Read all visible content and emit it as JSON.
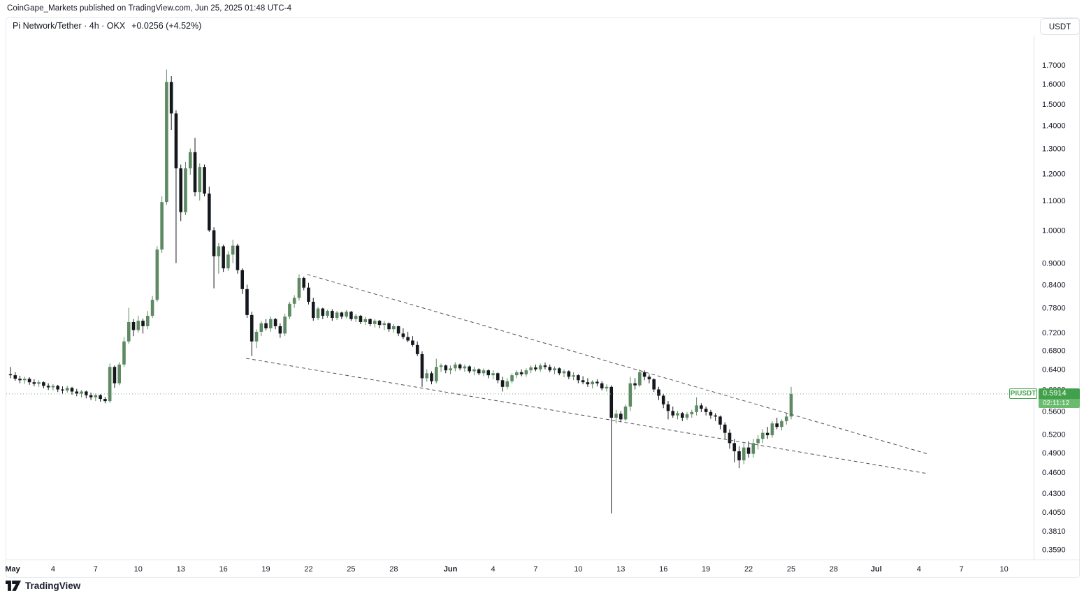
{
  "attribution": "CoinGape_Markets published on TradingView.com, Jun 25, 2025 01:48 UTC-4",
  "header": {
    "title_text": "Pi Network/Tether · 4h · OKX",
    "change_text": "+0.0256 (+4.52%)"
  },
  "toolbar": {
    "currency_label": "USDT"
  },
  "price_label": {
    "ticker": "PIUSDT",
    "price": "0.5914",
    "countdown": "02:11:12"
  },
  "footer": {
    "brand": "TradingView"
  },
  "colors": {
    "up_candle": "#5d8a62",
    "down_candle": "#14171c",
    "trendline": "#4f4f4f",
    "current_price_line": "#76ac7c",
    "label_green": "#41a04b",
    "countdown_green": "#6abb6e",
    "axis_text": "#131722",
    "separator": "#e0e3eb"
  },
  "chart_data": {
    "type": "candlestick",
    "symbol": "PIUSDT",
    "exchange": "OKX",
    "interval": "4h",
    "scale": "logarithmic",
    "grid": false,
    "current_price": 0.5914,
    "session_countdown": "02:11:12",
    "y_axis": {
      "unit": "USDT",
      "range": [
        0.345,
        1.72
      ],
      "ticks": [
        {
          "label": "1.7000",
          "price": 1.7
        },
        {
          "label": "1.6000",
          "price": 1.6
        },
        {
          "label": "1.5000",
          "price": 1.5
        },
        {
          "label": "1.4000",
          "price": 1.4
        },
        {
          "label": "1.3000",
          "price": 1.3
        },
        {
          "label": "1.2000",
          "price": 1.2
        },
        {
          "label": "1.1000",
          "price": 1.1
        },
        {
          "label": "1.0000",
          "price": 1.0
        },
        {
          "label": "0.9000",
          "price": 0.9
        },
        {
          "label": "0.8400",
          "price": 0.84
        },
        {
          "label": "0.7800",
          "price": 0.78
        },
        {
          "label": "0.7200",
          "price": 0.72
        },
        {
          "label": "0.6800",
          "price": 0.68
        },
        {
          "label": "0.6400",
          "price": 0.64
        },
        {
          "label": "0.6000",
          "price": 0.6
        },
        {
          "label": "0.5600",
          "price": 0.56
        },
        {
          "label": "0.5200",
          "price": 0.52
        },
        {
          "label": "0.4900",
          "price": 0.49
        },
        {
          "label": "0.4600",
          "price": 0.46
        },
        {
          "label": "0.4300",
          "price": 0.43
        },
        {
          "label": "0.4050",
          "price": 0.405
        },
        {
          "label": "0.3810",
          "price": 0.381
        },
        {
          "label": "0.3590",
          "price": 0.359
        }
      ]
    },
    "x_axis": {
      "start_date": "May 1",
      "range_days": [
        0,
        70.5
      ],
      "ticks": [
        {
          "label": "May",
          "day": 0.15,
          "bold": true
        },
        {
          "label": "4",
          "day": 3
        },
        {
          "label": "7",
          "day": 6
        },
        {
          "label": "10",
          "day": 9
        },
        {
          "label": "13",
          "day": 12
        },
        {
          "label": "16",
          "day": 15
        },
        {
          "label": "19",
          "day": 18
        },
        {
          "label": "22",
          "day": 21
        },
        {
          "label": "25",
          "day": 24
        },
        {
          "label": "28",
          "day": 27
        },
        {
          "label": "Jun",
          "day": 31,
          "bold": true
        },
        {
          "label": "4",
          "day": 34
        },
        {
          "label": "7",
          "day": 37
        },
        {
          "label": "10",
          "day": 40
        },
        {
          "label": "13",
          "day": 43
        },
        {
          "label": "16",
          "day": 46
        },
        {
          "label": "19",
          "day": 49
        },
        {
          "label": "22",
          "day": 52
        },
        {
          "label": "25",
          "day": 55
        },
        {
          "label": "28",
          "day": 58
        },
        {
          "label": "Jul",
          "day": 61,
          "bold": true
        },
        {
          "label": "4",
          "day": 64
        },
        {
          "label": "7",
          "day": 67
        },
        {
          "label": "10",
          "day": 70
        }
      ]
    },
    "trendlines": [
      {
        "name": "wedge-upper",
        "from_day": 20.9,
        "from_price": 0.868,
        "to_day": 64.6,
        "to_price": 0.488,
        "style": "dashed"
      },
      {
        "name": "wedge-lower",
        "from_day": 16.6,
        "from_price": 0.663,
        "to_day": 64.6,
        "to_price": 0.458,
        "style": "dashed"
      }
    ],
    "candle_step_days": 0.33333,
    "first_candle_day": 0,
    "candles": [
      [
        0.63,
        0.645,
        0.622,
        0.628
      ],
      [
        0.628,
        0.634,
        0.617,
        0.621
      ],
      [
        0.621,
        0.627,
        0.612,
        0.618
      ],
      [
        0.618,
        0.625,
        0.611,
        0.621
      ],
      [
        0.621,
        0.624,
        0.609,
        0.614
      ],
      [
        0.614,
        0.62,
        0.606,
        0.611
      ],
      [
        0.611,
        0.618,
        0.605,
        0.614
      ],
      [
        0.614,
        0.616,
        0.602,
        0.607
      ],
      [
        0.607,
        0.612,
        0.599,
        0.604
      ],
      [
        0.604,
        0.61,
        0.598,
        0.607
      ],
      [
        0.607,
        0.609,
        0.595,
        0.6
      ],
      [
        0.6,
        0.606,
        0.592,
        0.598
      ],
      [
        0.598,
        0.607,
        0.594,
        0.603
      ],
      [
        0.603,
        0.605,
        0.59,
        0.596
      ],
      [
        0.596,
        0.601,
        0.587,
        0.592
      ],
      [
        0.592,
        0.599,
        0.585,
        0.596
      ],
      [
        0.596,
        0.598,
        0.583,
        0.589
      ],
      [
        0.589,
        0.594,
        0.58,
        0.585
      ],
      [
        0.585,
        0.592,
        0.578,
        0.589
      ],
      [
        0.589,
        0.591,
        0.577,
        0.582
      ],
      [
        0.582,
        0.586,
        0.574,
        0.578
      ],
      [
        0.578,
        0.652,
        0.575,
        0.645
      ],
      [
        0.645,
        0.648,
        0.603,
        0.612
      ],
      [
        0.612,
        0.655,
        0.608,
        0.65
      ],
      [
        0.65,
        0.71,
        0.645,
        0.7
      ],
      [
        0.7,
        0.78,
        0.695,
        0.745
      ],
      [
        0.745,
        0.752,
        0.712,
        0.726
      ],
      [
        0.726,
        0.76,
        0.72,
        0.748
      ],
      [
        0.748,
        0.753,
        0.718,
        0.735
      ],
      [
        0.735,
        0.772,
        0.728,
        0.76
      ],
      [
        0.76,
        0.81,
        0.755,
        0.8
      ],
      [
        0.8,
        0.95,
        0.795,
        0.94
      ],
      [
        0.94,
        1.115,
        0.93,
        1.095
      ],
      [
        1.095,
        1.675,
        1.085,
        1.61
      ],
      [
        1.61,
        1.64,
        1.38,
        1.455
      ],
      [
        1.455,
        1.47,
        0.9,
        1.22
      ],
      [
        1.22,
        1.235,
        1.03,
        1.06
      ],
      [
        1.06,
        1.245,
        1.05,
        1.22
      ],
      [
        1.22,
        1.3,
        1.195,
        1.285
      ],
      [
        1.285,
        1.345,
        1.115,
        1.13
      ],
      [
        1.13,
        1.24,
        1.1,
        1.225
      ],
      [
        1.225,
        1.235,
        1.115,
        1.125
      ],
      [
        1.125,
        1.15,
        0.995,
        1.0
      ],
      [
        1.0,
        1.01,
        0.83,
        0.92
      ],
      [
        0.92,
        0.96,
        0.87,
        0.95
      ],
      [
        0.95,
        0.955,
        0.875,
        0.885
      ],
      [
        0.885,
        0.935,
        0.878,
        0.925
      ],
      [
        0.925,
        0.97,
        0.9,
        0.952
      ],
      [
        0.952,
        0.958,
        0.87,
        0.88
      ],
      [
        0.88,
        0.885,
        0.815,
        0.828
      ],
      [
        0.828,
        0.84,
        0.755,
        0.762
      ],
      [
        0.762,
        0.77,
        0.668,
        0.7
      ],
      [
        0.7,
        0.728,
        0.685,
        0.722
      ],
      [
        0.722,
        0.748,
        0.712,
        0.742
      ],
      [
        0.742,
        0.752,
        0.725,
        0.73
      ],
      [
        0.73,
        0.758,
        0.722,
        0.752
      ],
      [
        0.752,
        0.755,
        0.728,
        0.735
      ],
      [
        0.735,
        0.742,
        0.708,
        0.718
      ],
      [
        0.718,
        0.765,
        0.712,
        0.758
      ],
      [
        0.758,
        0.795,
        0.752,
        0.79
      ],
      [
        0.79,
        0.812,
        0.78,
        0.805
      ],
      [
        0.805,
        0.868,
        0.798,
        0.858
      ],
      [
        0.858,
        0.862,
        0.825,
        0.832
      ],
      [
        0.832,
        0.845,
        0.788,
        0.795
      ],
      [
        0.795,
        0.805,
        0.748,
        0.755
      ],
      [
        0.755,
        0.782,
        0.75,
        0.778
      ],
      [
        0.778,
        0.78,
        0.752,
        0.76
      ],
      [
        0.76,
        0.775,
        0.755,
        0.772
      ],
      [
        0.772,
        0.776,
        0.748,
        0.755
      ],
      [
        0.755,
        0.772,
        0.75,
        0.768
      ],
      [
        0.768,
        0.77,
        0.752,
        0.758
      ],
      [
        0.758,
        0.774,
        0.754,
        0.77
      ],
      [
        0.77,
        0.772,
        0.748,
        0.752
      ],
      [
        0.752,
        0.765,
        0.745,
        0.76
      ],
      [
        0.76,
        0.762,
        0.74,
        0.745
      ],
      [
        0.745,
        0.758,
        0.738,
        0.752
      ],
      [
        0.752,
        0.754,
        0.735,
        0.74
      ],
      [
        0.74,
        0.752,
        0.732,
        0.748
      ],
      [
        0.748,
        0.75,
        0.73,
        0.738
      ],
      [
        0.738,
        0.748,
        0.726,
        0.742
      ],
      [
        0.742,
        0.744,
        0.722,
        0.728
      ],
      [
        0.728,
        0.74,
        0.72,
        0.735
      ],
      [
        0.735,
        0.736,
        0.712,
        0.718
      ],
      [
        0.718,
        0.73,
        0.705,
        0.71
      ],
      [
        0.71,
        0.722,
        0.698,
        0.702
      ],
      [
        0.702,
        0.712,
        0.688,
        0.692
      ],
      [
        0.692,
        0.7,
        0.668,
        0.672
      ],
      [
        0.672,
        0.678,
        0.605,
        0.622
      ],
      [
        0.622,
        0.64,
        0.615,
        0.632
      ],
      [
        0.632,
        0.636,
        0.61,
        0.616
      ],
      [
        0.616,
        0.662,
        0.612,
        0.645
      ],
      [
        0.645,
        0.652,
        0.635,
        0.648
      ],
      [
        0.648,
        0.65,
        0.632,
        0.638
      ],
      [
        0.638,
        0.648,
        0.63,
        0.642
      ],
      [
        0.642,
        0.655,
        0.636,
        0.65
      ],
      [
        0.65,
        0.652,
        0.638,
        0.642
      ],
      [
        0.642,
        0.65,
        0.635,
        0.646
      ],
      [
        0.646,
        0.648,
        0.632,
        0.636
      ],
      [
        0.636,
        0.645,
        0.628,
        0.64
      ],
      [
        0.64,
        0.642,
        0.628,
        0.632
      ],
      [
        0.632,
        0.642,
        0.626,
        0.638
      ],
      [
        0.638,
        0.64,
        0.622,
        0.628
      ],
      [
        0.628,
        0.638,
        0.62,
        0.632
      ],
      [
        0.632,
        0.634,
        0.612,
        0.618
      ],
      [
        0.618,
        0.625,
        0.596,
        0.605
      ],
      [
        0.605,
        0.622,
        0.6,
        0.616
      ],
      [
        0.616,
        0.632,
        0.612,
        0.628
      ],
      [
        0.628,
        0.638,
        0.622,
        0.634
      ],
      [
        0.634,
        0.64,
        0.626,
        0.63
      ],
      [
        0.63,
        0.642,
        0.625,
        0.638
      ],
      [
        0.638,
        0.648,
        0.632,
        0.644
      ],
      [
        0.644,
        0.65,
        0.636,
        0.64
      ],
      [
        0.64,
        0.652,
        0.635,
        0.648
      ],
      [
        0.648,
        0.654,
        0.64,
        0.645
      ],
      [
        0.645,
        0.65,
        0.634,
        0.638
      ],
      [
        0.638,
        0.646,
        0.63,
        0.642
      ],
      [
        0.642,
        0.644,
        0.628,
        0.632
      ],
      [
        0.632,
        0.64,
        0.624,
        0.636
      ],
      [
        0.636,
        0.638,
        0.62,
        0.625
      ],
      [
        0.625,
        0.634,
        0.618,
        0.628
      ],
      [
        0.628,
        0.63,
        0.612,
        0.618
      ],
      [
        0.618,
        0.626,
        0.61,
        0.614
      ],
      [
        0.614,
        0.622,
        0.605,
        0.61
      ],
      [
        0.61,
        0.618,
        0.602,
        0.615
      ],
      [
        0.615,
        0.62,
        0.606,
        0.612
      ],
      [
        0.612,
        0.616,
        0.598,
        0.602
      ],
      [
        0.602,
        0.61,
        0.596,
        0.605
      ],
      [
        0.605,
        0.608,
        0.403,
        0.548
      ],
      [
        0.548,
        0.562,
        0.538,
        0.555
      ],
      [
        0.555,
        0.56,
        0.54,
        0.545
      ],
      [
        0.545,
        0.572,
        0.542,
        0.568
      ],
      [
        0.568,
        0.625,
        0.56,
        0.612
      ],
      [
        0.612,
        0.622,
        0.6,
        0.608
      ],
      [
        0.608,
        0.64,
        0.605,
        0.634
      ],
      [
        0.634,
        0.638,
        0.618,
        0.625
      ],
      [
        0.625,
        0.63,
        0.612,
        0.62
      ],
      [
        0.62,
        0.622,
        0.595,
        0.6
      ],
      [
        0.6,
        0.605,
        0.58,
        0.588
      ],
      [
        0.588,
        0.592,
        0.565,
        0.572
      ],
      [
        0.572,
        0.578,
        0.545,
        0.56
      ],
      [
        0.56,
        0.568,
        0.548,
        0.552
      ],
      [
        0.552,
        0.56,
        0.545,
        0.556
      ],
      [
        0.556,
        0.558,
        0.542,
        0.548
      ],
      [
        0.548,
        0.558,
        0.544,
        0.554
      ],
      [
        0.554,
        0.562,
        0.548,
        0.558
      ],
      [
        0.558,
        0.585,
        0.552,
        0.57
      ],
      [
        0.57,
        0.574,
        0.558,
        0.564
      ],
      [
        0.564,
        0.568,
        0.552,
        0.558
      ],
      [
        0.558,
        0.562,
        0.546,
        0.552
      ],
      [
        0.552,
        0.556,
        0.542,
        0.55
      ],
      [
        0.55,
        0.552,
        0.528,
        0.536
      ],
      [
        0.536,
        0.54,
        0.512,
        0.522
      ],
      [
        0.522,
        0.528,
        0.496,
        0.505
      ],
      [
        0.505,
        0.512,
        0.475,
        0.492
      ],
      [
        0.492,
        0.5,
        0.466,
        0.478
      ],
      [
        0.478,
        0.505,
        0.472,
        0.498
      ],
      [
        0.498,
        0.508,
        0.482,
        0.488
      ],
      [
        0.488,
        0.512,
        0.482,
        0.505
      ],
      [
        0.505,
        0.518,
        0.495,
        0.512
      ],
      [
        0.512,
        0.528,
        0.505,
        0.522
      ],
      [
        0.522,
        0.532,
        0.512,
        0.518
      ],
      [
        0.518,
        0.542,
        0.514,
        0.538
      ],
      [
        0.538,
        0.548,
        0.528,
        0.532
      ],
      [
        0.532,
        0.545,
        0.526,
        0.542
      ],
      [
        0.542,
        0.556,
        0.536,
        0.55
      ],
      [
        0.55,
        0.605,
        0.545,
        0.5914
      ]
    ]
  }
}
